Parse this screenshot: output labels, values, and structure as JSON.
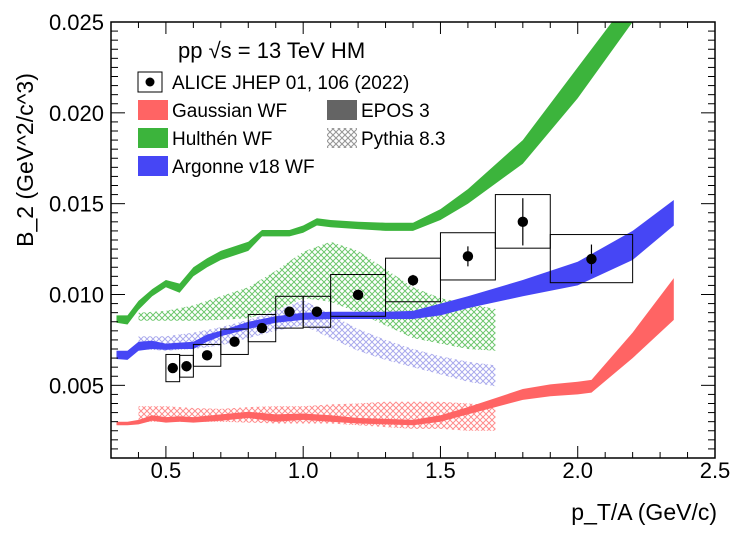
{
  "chart_data": {
    "type": "scatter",
    "title": "",
    "header": "pp √s = 13 TeV HM",
    "xlabel": "p_T/A (GeV/c)",
    "ylabel": "B_2 (GeV^2/c^3)",
    "xlim": [
      0.3,
      2.5
    ],
    "ylim": [
      0.001,
      0.025
    ],
    "xticks": [
      0.5,
      1.0,
      1.5,
      2.0,
      2.5
    ],
    "xtick_labels": [
      "0.5",
      "1.0",
      "1.5",
      "2.0",
      "2.5"
    ],
    "yticks": [
      0.005,
      0.01,
      0.015,
      0.02,
      0.025
    ],
    "ytick_labels": [
      "0.005",
      "0.010",
      "0.015",
      "0.020",
      "0.025"
    ],
    "grid": false,
    "legend_position": "top-left",
    "legend": [
      {
        "key": "data",
        "label": "ALICE JHEP 01, 106 (2022)",
        "style": "marker"
      },
      {
        "key": "gaussian",
        "label": "Gaussian WF",
        "style": "fill",
        "color": "#ff6464"
      },
      {
        "key": "hulthen",
        "label": "Hulthén WF",
        "style": "fill",
        "color": "#3cb43c"
      },
      {
        "key": "argonne",
        "label": "Argonne v18 WF",
        "style": "fill",
        "color": "#4646f5"
      },
      {
        "key": "epos",
        "label": "EPOS 3",
        "style": "fill",
        "color": "#646464"
      },
      {
        "key": "pythia",
        "label": "Pythia 8.3",
        "style": "hatch",
        "color": "#969696"
      }
    ],
    "data_points": [
      {
        "x": 0.525,
        "y": 0.00595,
        "xlo": 0.5,
        "xhi": 0.55,
        "syst_lo": 0.0052,
        "syst_hi": 0.0067,
        "stat": 0.00012
      },
      {
        "x": 0.575,
        "y": 0.00605,
        "xlo": 0.55,
        "xhi": 0.6,
        "syst_lo": 0.00545,
        "syst_hi": 0.00665,
        "stat": 0.00012
      },
      {
        "x": 0.65,
        "y": 0.00665,
        "xlo": 0.6,
        "xhi": 0.7,
        "syst_lo": 0.00605,
        "syst_hi": 0.00725,
        "stat": 0.00012
      },
      {
        "x": 0.75,
        "y": 0.0074,
        "xlo": 0.7,
        "xhi": 0.8,
        "syst_lo": 0.0067,
        "syst_hi": 0.0081,
        "stat": 0.00012
      },
      {
        "x": 0.85,
        "y": 0.00815,
        "xlo": 0.8,
        "xhi": 0.9,
        "syst_lo": 0.0074,
        "syst_hi": 0.0089,
        "stat": 0.00012
      },
      {
        "x": 0.95,
        "y": 0.00905,
        "xlo": 0.9,
        "xhi": 1.0,
        "syst_lo": 0.00815,
        "syst_hi": 0.0099,
        "stat": 0.00012
      },
      {
        "x": 1.05,
        "y": 0.00905,
        "xlo": 1.0,
        "xhi": 1.1,
        "syst_lo": 0.0082,
        "syst_hi": 0.0099,
        "stat": 0.00012
      },
      {
        "x": 1.2,
        "y": 0.00998,
        "xlo": 1.1,
        "xhi": 1.3,
        "syst_lo": 0.0088,
        "syst_hi": 0.0111,
        "stat": 0.00012
      },
      {
        "x": 1.4,
        "y": 0.01078,
        "xlo": 1.3,
        "xhi": 1.5,
        "syst_lo": 0.0096,
        "syst_hi": 0.012,
        "stat": 0.0003
      },
      {
        "x": 1.6,
        "y": 0.0121,
        "xlo": 1.5,
        "xhi": 1.7,
        "syst_lo": 0.0108,
        "syst_hi": 0.0134,
        "stat": 0.00055
      },
      {
        "x": 1.8,
        "y": 0.014,
        "xlo": 1.7,
        "xhi": 1.9,
        "syst_lo": 0.01255,
        "syst_hi": 0.0155,
        "stat": 0.0013
      },
      {
        "x": 2.05,
        "y": 0.01195,
        "xlo": 1.9,
        "xhi": 2.2,
        "syst_lo": 0.01065,
        "syst_hi": 0.0133,
        "stat": 0.0008
      }
    ],
    "bands": [
      {
        "key": "hulthen",
        "label": "Hulthén WF",
        "color": "#3cb43c",
        "x": [
          0.32,
          0.36,
          0.4,
          0.45,
          0.5,
          0.55,
          0.6,
          0.65,
          0.7,
          0.8,
          0.85,
          0.9,
          0.95,
          1.0,
          1.05,
          1.1,
          1.2,
          1.3,
          1.4,
          1.5,
          1.6,
          1.8,
          2.0,
          2.2
        ],
        "lo": [
          0.00845,
          0.00835,
          0.00915,
          0.0099,
          0.0104,
          0.0101,
          0.011,
          0.0115,
          0.0119,
          0.0124,
          0.0132,
          0.0132,
          0.0132,
          0.0134,
          0.0138,
          0.0137,
          0.0136,
          0.0135,
          0.0135,
          0.0141,
          0.015,
          0.0172,
          0.0208,
          0.025
        ],
        "hi": [
          0.00885,
          0.00885,
          0.00965,
          0.0103,
          0.0108,
          0.0106,
          0.0115,
          0.012,
          0.0124,
          0.0129,
          0.01355,
          0.01355,
          0.01355,
          0.0138,
          0.0142,
          0.0141,
          0.014,
          0.01395,
          0.01395,
          0.0147,
          0.0158,
          0.0185,
          0.0225,
          0.0265
        ]
      },
      {
        "key": "argonne",
        "label": "Argonne v18 WF",
        "color": "#4646f5",
        "x": [
          0.32,
          0.36,
          0.4,
          0.45,
          0.5,
          0.55,
          0.6,
          0.65,
          0.7,
          0.8,
          0.9,
          1.0,
          1.1,
          1.2,
          1.3,
          1.4,
          1.5,
          1.6,
          1.8,
          2.0,
          2.2,
          2.35
        ],
        "lo": [
          0.00645,
          0.0064,
          0.0069,
          0.007,
          0.00695,
          0.007,
          0.007,
          0.0074,
          0.0077,
          0.0081,
          0.00845,
          0.0086,
          0.00865,
          0.00865,
          0.00865,
          0.00865,
          0.00885,
          0.00925,
          0.0099,
          0.0105,
          0.0119,
          0.0138
        ],
        "hi": [
          0.0069,
          0.0069,
          0.0074,
          0.00745,
          0.0073,
          0.00735,
          0.0074,
          0.0078,
          0.008,
          0.0085,
          0.0088,
          0.009,
          0.00905,
          0.00905,
          0.00905,
          0.0091,
          0.0095,
          0.0099,
          0.0108,
          0.0118,
          0.0135,
          0.0152
        ]
      },
      {
        "key": "gaussian",
        "label": "Gaussian WF",
        "color": "#ff6464",
        "x": [
          0.32,
          0.36,
          0.4,
          0.45,
          0.5,
          0.55,
          0.6,
          0.7,
          0.8,
          0.9,
          1.0,
          1.1,
          1.2,
          1.3,
          1.4,
          1.5,
          1.6,
          1.7,
          1.8,
          1.9,
          2.0,
          2.05,
          2.2,
          2.35
        ],
        "lo": [
          0.0028,
          0.0028,
          0.00285,
          0.00305,
          0.00295,
          0.003,
          0.00295,
          0.00305,
          0.0032,
          0.003,
          0.0031,
          0.003,
          0.0029,
          0.00285,
          0.0028,
          0.003,
          0.0034,
          0.0038,
          0.0042,
          0.0044,
          0.0045,
          0.0046,
          0.0065,
          0.0086
        ],
        "hi": [
          0.003,
          0.003,
          0.0031,
          0.00335,
          0.00325,
          0.0033,
          0.00325,
          0.0034,
          0.00355,
          0.0034,
          0.00345,
          0.00335,
          0.0032,
          0.00315,
          0.0031,
          0.00335,
          0.0038,
          0.0043,
          0.0048,
          0.00505,
          0.0052,
          0.0053,
          0.0079,
          0.0109
        ]
      }
    ],
    "hatched_bands": [
      {
        "key": "pythia_green",
        "color": "#3cb43c",
        "x": [
          0.4,
          0.5,
          0.6,
          0.7,
          0.8,
          0.9,
          1.0,
          1.1,
          1.2,
          1.3,
          1.4,
          1.5,
          1.6,
          1.7
        ],
        "lo": [
          0.00855,
          0.00855,
          0.00855,
          0.0086,
          0.0087,
          0.0091,
          0.0098,
          0.0096,
          0.009,
          0.0083,
          0.0076,
          0.0073,
          0.007,
          0.0069
        ],
        "hi": [
          0.009,
          0.0091,
          0.0094,
          0.0099,
          0.0104,
          0.0113,
          0.01235,
          0.0129,
          0.0124,
          0.0114,
          0.0104,
          0.0098,
          0.0095,
          0.0092
        ]
      },
      {
        "key": "pythia_blue",
        "color": "#8c8ce6",
        "x": [
          0.4,
          0.5,
          0.6,
          0.7,
          0.8,
          0.9,
          1.0,
          1.1,
          1.2,
          1.3,
          1.4,
          1.5,
          1.6,
          1.7
        ],
        "lo": [
          0.007,
          0.0069,
          0.007,
          0.0072,
          0.0076,
          0.008,
          0.0083,
          0.0076,
          0.0069,
          0.0064,
          0.006,
          0.0056,
          0.0052,
          0.00495
        ],
        "hi": [
          0.0077,
          0.0077,
          0.0079,
          0.0082,
          0.0086,
          0.0091,
          0.0097,
          0.0089,
          0.0081,
          0.0075,
          0.007,
          0.0066,
          0.0063,
          0.0061
        ]
      },
      {
        "key": "pythia_red",
        "color": "#ff6464",
        "x": [
          0.4,
          0.5,
          0.6,
          0.7,
          0.8,
          0.9,
          1.0,
          1.1,
          1.2,
          1.3,
          1.4,
          1.5,
          1.6,
          1.7
        ],
        "lo": [
          0.003,
          0.003,
          0.003,
          0.003,
          0.00295,
          0.0029,
          0.0029,
          0.0029,
          0.0028,
          0.0027,
          0.0026,
          0.0026,
          0.0025,
          0.0025
        ],
        "hi": [
          0.00385,
          0.00385,
          0.00375,
          0.0037,
          0.0038,
          0.00385,
          0.00385,
          0.00395,
          0.004,
          0.0041,
          0.0041,
          0.0041,
          0.004,
          0.0039
        ]
      }
    ]
  }
}
